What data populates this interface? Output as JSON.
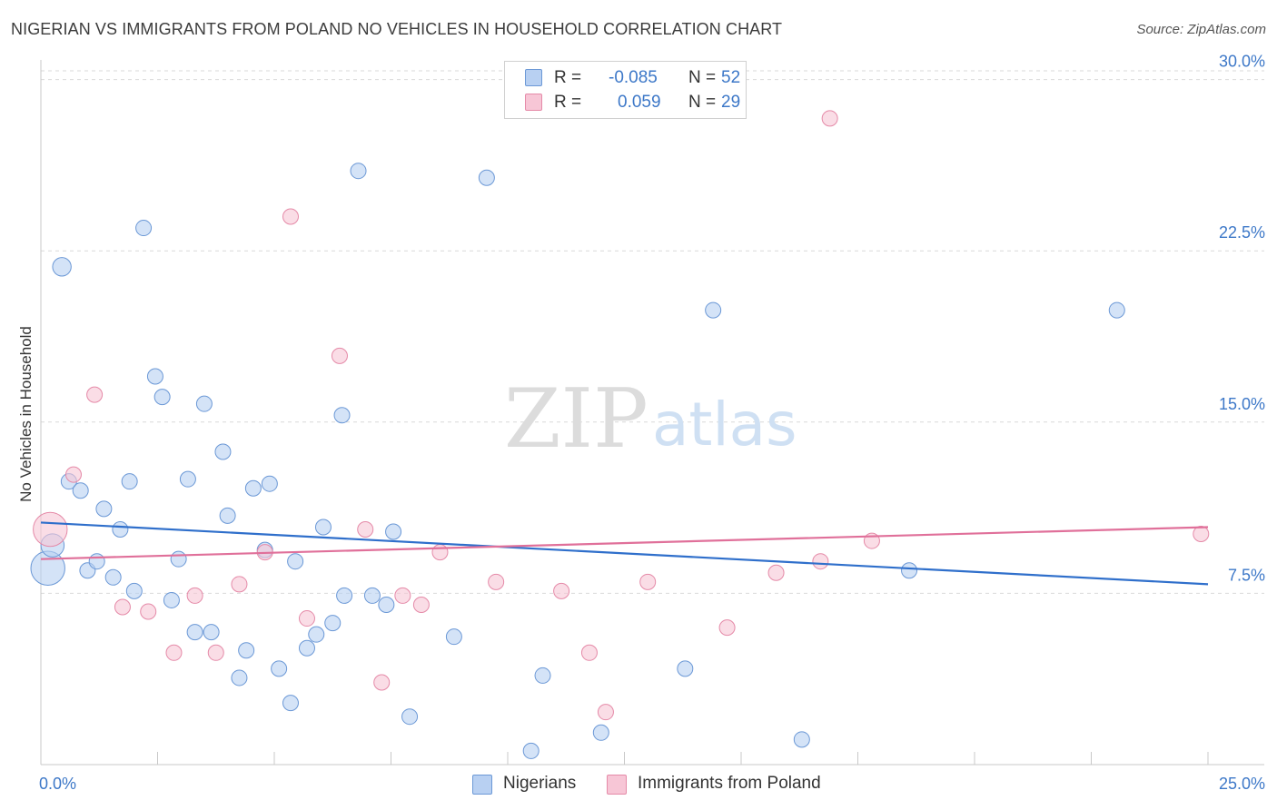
{
  "header": {
    "title": "NIGERIAN VS IMMIGRANTS FROM POLAND NO VEHICLES IN HOUSEHOLD CORRELATION CHART",
    "source": "Source: ZipAtlas.com"
  },
  "watermark": {
    "zip": "ZIP",
    "atlas": "atlas"
  },
  "legend": {
    "rows": [
      {
        "r_label": "R =",
        "r_value": "-0.085",
        "n_label": "N =",
        "n_value": "52"
      },
      {
        "r_label": "R =",
        "r_value": "0.059",
        "n_label": "N =",
        "n_value": "29"
      }
    ]
  },
  "bottom_legend": {
    "items": [
      {
        "label": "Nigerians"
      },
      {
        "label": "Immigrants from Poland"
      }
    ]
  },
  "colors": {
    "nigerians_fill": "#b8d0f2",
    "nigerians_stroke": "#6b98d6",
    "nigerians_line": "#2f6fcb",
    "poland_fill": "#f7c6d6",
    "poland_stroke": "#e58aa8",
    "poland_line": "#e0709a",
    "tick_text": "#3d78c8",
    "grid": "#d9d9d9"
  },
  "chart_data": {
    "type": "scatter",
    "title": "NIGERIAN VS IMMIGRANTS FROM POLAND NO VEHICLES IN HOUSEHOLD CORRELATION CHART",
    "xlabel": "",
    "ylabel": "No Vehicles in Household",
    "xlim": [
      0,
      25
    ],
    "ylim": [
      0,
      30.7
    ],
    "x_tick_labels": [
      "0.0%",
      "25.0%"
    ],
    "y_ticks": [
      7.5,
      15.0,
      22.5,
      30.0
    ],
    "y_tick_labels": [
      "7.5%",
      "15.0%",
      "22.5%",
      "30.0%"
    ],
    "grid": "horizontal dashed",
    "series": [
      {
        "name": "Nigerians",
        "r": -0.085,
        "n": 52,
        "trend": {
          "x": [
            0,
            25
          ],
          "y": [
            10.6,
            7.9
          ]
        },
        "points": [
          {
            "x": 0.15,
            "y": 8.6,
            "s": 2.2
          },
          {
            "x": 0.25,
            "y": 9.6,
            "s": 1.5
          },
          {
            "x": 0.45,
            "y": 21.8,
            "s": 1.2
          },
          {
            "x": 0.6,
            "y": 12.4,
            "s": 1
          },
          {
            "x": 0.85,
            "y": 12.0,
            "s": 1
          },
          {
            "x": 1.0,
            "y": 8.5,
            "s": 1
          },
          {
            "x": 1.2,
            "y": 8.9,
            "s": 1
          },
          {
            "x": 1.35,
            "y": 11.2,
            "s": 1
          },
          {
            "x": 1.55,
            "y": 8.2,
            "s": 1
          },
          {
            "x": 1.7,
            "y": 10.3,
            "s": 1
          },
          {
            "x": 1.9,
            "y": 12.4,
            "s": 1
          },
          {
            "x": 2.0,
            "y": 7.6,
            "s": 1
          },
          {
            "x": 2.2,
            "y": 23.5,
            "s": 1
          },
          {
            "x": 2.45,
            "y": 17.0,
            "s": 1
          },
          {
            "x": 2.6,
            "y": 16.1,
            "s": 1
          },
          {
            "x": 2.8,
            "y": 7.2,
            "s": 1
          },
          {
            "x": 2.95,
            "y": 9.0,
            "s": 1
          },
          {
            "x": 3.15,
            "y": 12.5,
            "s": 1
          },
          {
            "x": 3.3,
            "y": 5.8,
            "s": 1
          },
          {
            "x": 3.5,
            "y": 15.8,
            "s": 1
          },
          {
            "x": 3.65,
            "y": 5.8,
            "s": 1
          },
          {
            "x": 3.9,
            "y": 13.7,
            "s": 1
          },
          {
            "x": 4.0,
            "y": 10.9,
            "s": 1
          },
          {
            "x": 4.25,
            "y": 3.8,
            "s": 1
          },
          {
            "x": 4.4,
            "y": 5.0,
            "s": 1
          },
          {
            "x": 4.55,
            "y": 12.1,
            "s": 1
          },
          {
            "x": 4.8,
            "y": 9.4,
            "s": 1
          },
          {
            "x": 4.9,
            "y": 12.3,
            "s": 1
          },
          {
            "x": 5.1,
            "y": 4.2,
            "s": 1
          },
          {
            "x": 5.35,
            "y": 2.7,
            "s": 1
          },
          {
            "x": 5.45,
            "y": 8.9,
            "s": 1
          },
          {
            "x": 5.7,
            "y": 5.1,
            "s": 1
          },
          {
            "x": 5.9,
            "y": 5.7,
            "s": 1
          },
          {
            "x": 6.05,
            "y": 10.4,
            "s": 1
          },
          {
            "x": 6.25,
            "y": 6.2,
            "s": 1
          },
          {
            "x": 6.45,
            "y": 15.3,
            "s": 1
          },
          {
            "x": 6.5,
            "y": 7.4,
            "s": 1
          },
          {
            "x": 6.8,
            "y": 26.0,
            "s": 1
          },
          {
            "x": 7.1,
            "y": 7.4,
            "s": 1
          },
          {
            "x": 7.4,
            "y": 7.0,
            "s": 1
          },
          {
            "x": 7.55,
            "y": 10.2,
            "s": 1
          },
          {
            "x": 7.9,
            "y": 2.1,
            "s": 1
          },
          {
            "x": 8.85,
            "y": 5.6,
            "s": 1
          },
          {
            "x": 9.55,
            "y": 25.7,
            "s": 1
          },
          {
            "x": 10.5,
            "y": 0.6,
            "s": 1
          },
          {
            "x": 10.75,
            "y": 3.9,
            "s": 1
          },
          {
            "x": 12.0,
            "y": 1.4,
            "s": 1
          },
          {
            "x": 13.8,
            "y": 4.2,
            "s": 1
          },
          {
            "x": 14.4,
            "y": 19.9,
            "s": 1
          },
          {
            "x": 16.3,
            "y": 1.1,
            "s": 1
          },
          {
            "x": 18.6,
            "y": 8.5,
            "s": 1
          },
          {
            "x": 23.05,
            "y": 19.9,
            "s": 1
          }
        ]
      },
      {
        "name": "Immigrants from Poland",
        "r": 0.059,
        "n": 29,
        "trend": {
          "x": [
            0,
            25
          ],
          "y": [
            9.0,
            10.4
          ]
        },
        "points": [
          {
            "x": 0.2,
            "y": 10.3,
            "s": 2.2
          },
          {
            "x": 0.7,
            "y": 12.7,
            "s": 1
          },
          {
            "x": 1.15,
            "y": 16.2,
            "s": 1
          },
          {
            "x": 1.75,
            "y": 6.9,
            "s": 1
          },
          {
            "x": 2.3,
            "y": 6.7,
            "s": 1
          },
          {
            "x": 2.85,
            "y": 4.9,
            "s": 1
          },
          {
            "x": 3.3,
            "y": 7.4,
            "s": 1
          },
          {
            "x": 3.75,
            "y": 4.9,
            "s": 1
          },
          {
            "x": 4.25,
            "y": 7.9,
            "s": 1
          },
          {
            "x": 4.8,
            "y": 9.3,
            "s": 1
          },
          {
            "x": 5.35,
            "y": 24.0,
            "s": 1
          },
          {
            "x": 5.7,
            "y": 6.4,
            "s": 1
          },
          {
            "x": 6.4,
            "y": 17.9,
            "s": 1
          },
          {
            "x": 6.95,
            "y": 10.3,
            "s": 1
          },
          {
            "x": 7.3,
            "y": 3.6,
            "s": 1
          },
          {
            "x": 7.75,
            "y": 7.4,
            "s": 1
          },
          {
            "x": 8.15,
            "y": 7.0,
            "s": 1
          },
          {
            "x": 8.55,
            "y": 9.3,
            "s": 1
          },
          {
            "x": 9.75,
            "y": 8.0,
            "s": 1
          },
          {
            "x": 11.15,
            "y": 7.6,
            "s": 1
          },
          {
            "x": 11.75,
            "y": 4.9,
            "s": 1
          },
          {
            "x": 12.1,
            "y": 2.3,
            "s": 1
          },
          {
            "x": 13.0,
            "y": 8.0,
            "s": 1
          },
          {
            "x": 14.7,
            "y": 6.0,
            "s": 1
          },
          {
            "x": 15.75,
            "y": 8.4,
            "s": 1
          },
          {
            "x": 16.7,
            "y": 8.9,
            "s": 1
          },
          {
            "x": 16.9,
            "y": 28.3,
            "s": 1
          },
          {
            "x": 17.8,
            "y": 9.8,
            "s": 1
          },
          {
            "x": 24.85,
            "y": 10.1,
            "s": 1
          }
        ]
      }
    ]
  }
}
